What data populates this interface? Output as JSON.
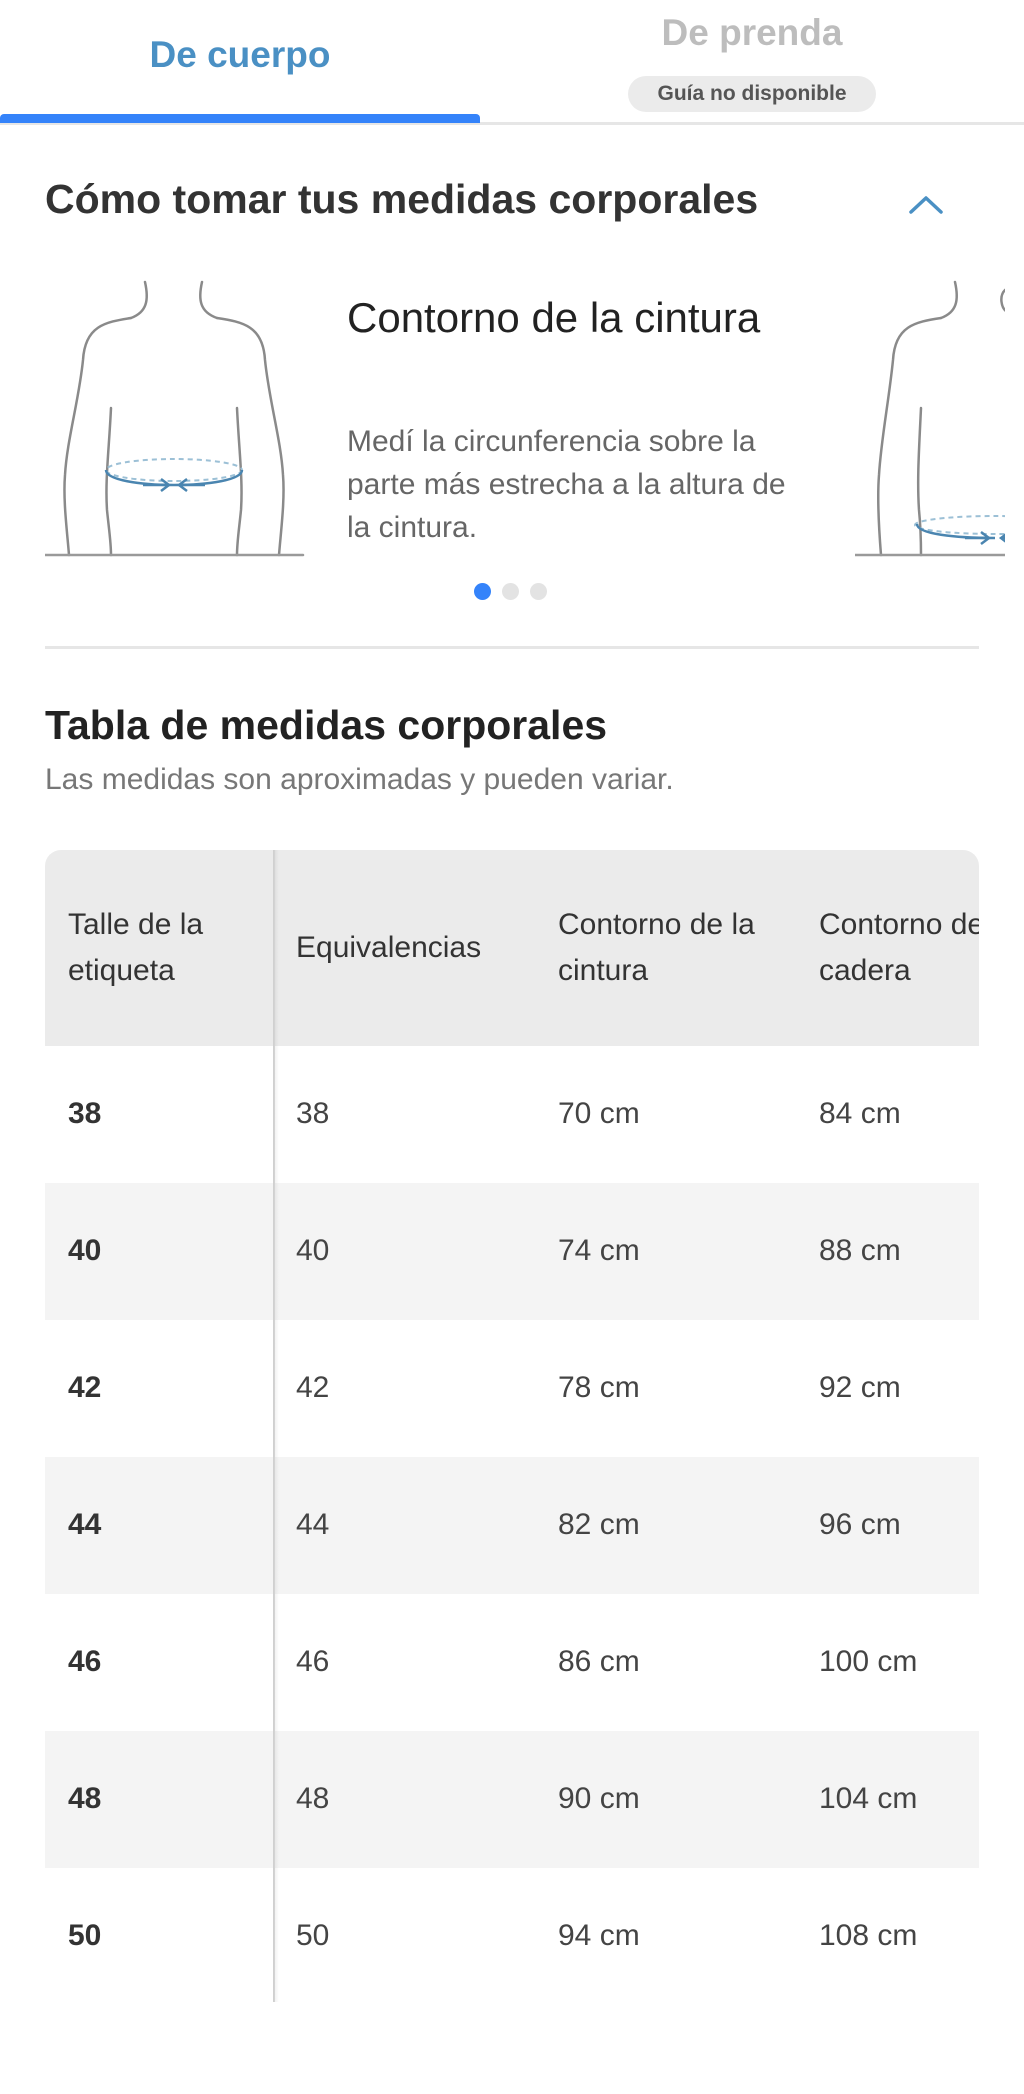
{
  "tabs": {
    "body": {
      "label": "De cuerpo"
    },
    "garment": {
      "label": "De prenda",
      "badge": "Guía no disponible"
    }
  },
  "how_to": {
    "title": "Cómo tomar tus medidas corporales",
    "slide": {
      "title": "Contorno de la cintura",
      "description": "Medí la circunferencia sobre la parte más estrecha a la altura de la cintura."
    },
    "pagination": {
      "total": 3,
      "active": 1
    }
  },
  "size_table": {
    "title": "Tabla de medidas corporales",
    "subtitle": "Las medidas son aproximadas y pueden variar.",
    "headers": [
      "Talle de la etiqueta",
      "Equivalencias",
      "Contorno de la cintura",
      "Contorno de cadera"
    ],
    "rows": [
      [
        "38",
        "38",
        "70 cm",
        "84 cm"
      ],
      [
        "40",
        "40",
        "74 cm",
        "88 cm"
      ],
      [
        "42",
        "42",
        "78 cm",
        "92 cm"
      ],
      [
        "44",
        "44",
        "82 cm",
        "96 cm"
      ],
      [
        "46",
        "46",
        "86 cm",
        "100 cm"
      ],
      [
        "48",
        "48",
        "90 cm",
        "104 cm"
      ],
      [
        "50",
        "50",
        "94 cm",
        "108 cm"
      ]
    ]
  },
  "colors": {
    "accent": "#3483fa",
    "tab_text_active": "#4a90c4",
    "header_bg": "#ebebeb",
    "row_alt_bg": "#f4f4f4"
  },
  "icons": {
    "collapse": "chevron-up-icon",
    "body_figure": "torso-waist-measure-illustration"
  }
}
